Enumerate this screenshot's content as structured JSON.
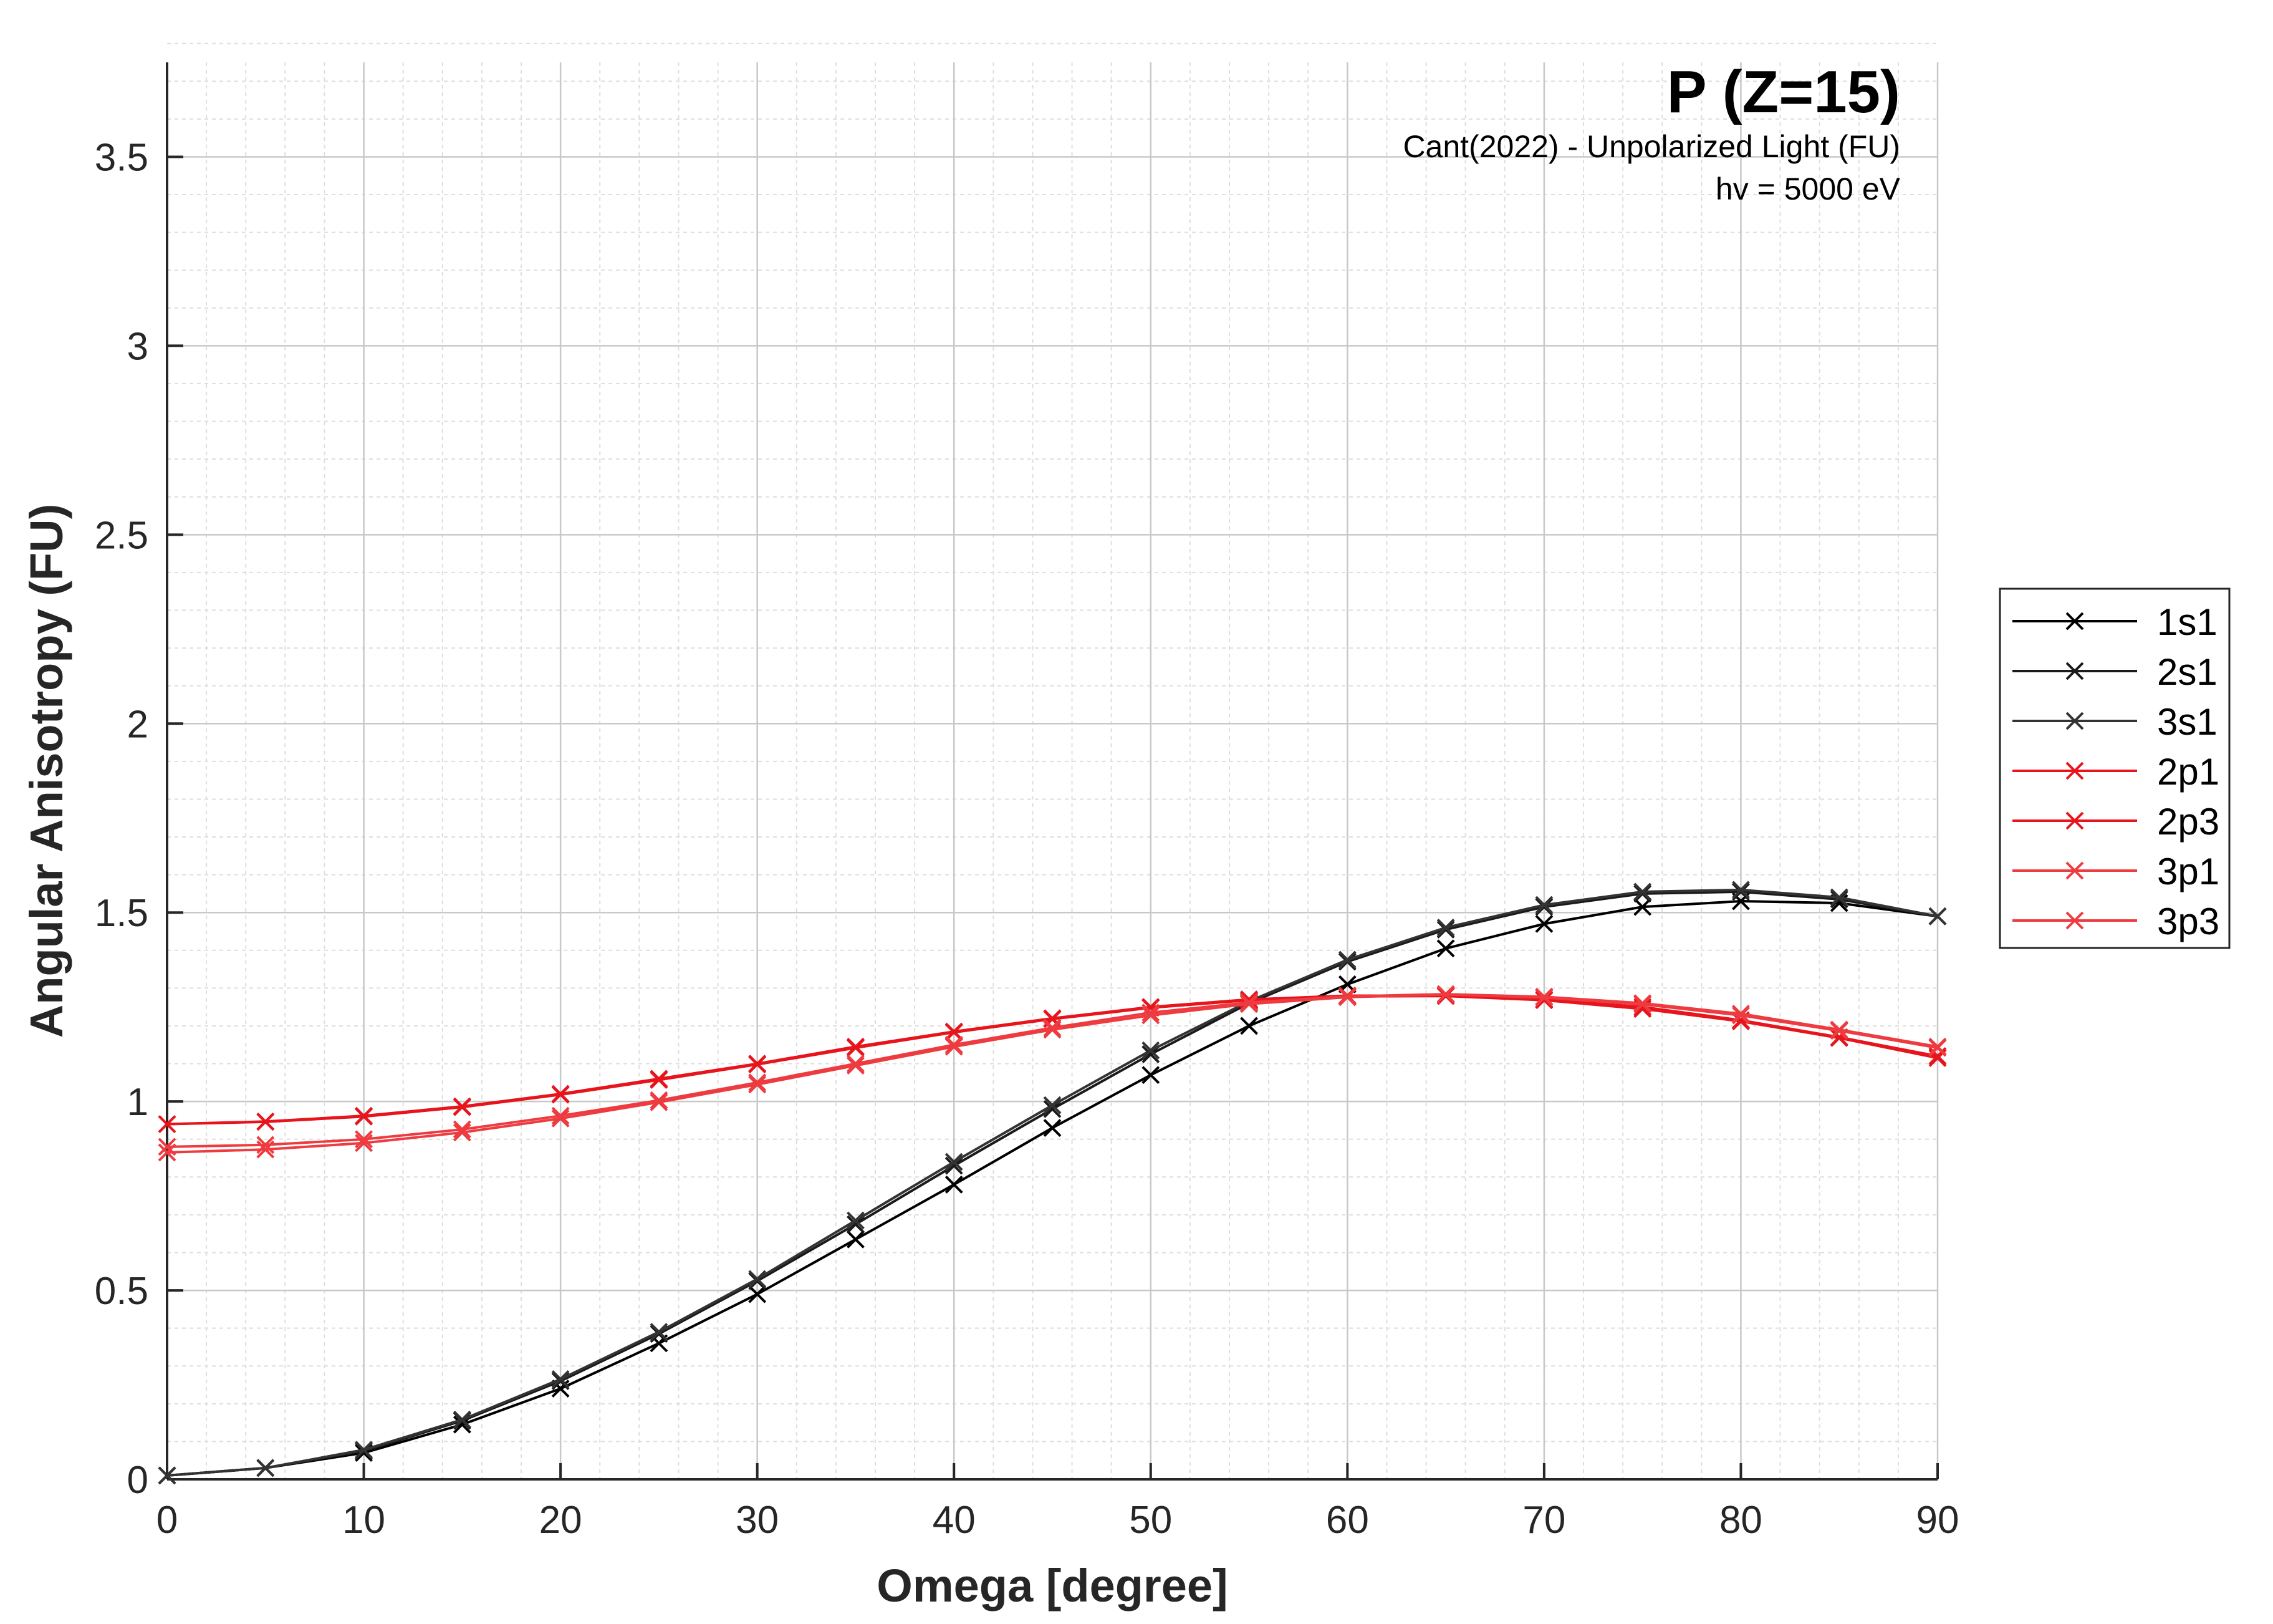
{
  "chart_data": {
    "type": "line",
    "title": "P (Z=15)",
    "subtitle_lines": [
      "Cant(2022) - Unpolarized Light (FU)",
      "hv = 5000 eV"
    ],
    "xlabel": "Omega [degree]",
    "ylabel": "Angular Anisotropy (FU)",
    "xlim": [
      0,
      90
    ],
    "ylim": [
      0,
      3.75
    ],
    "xticks": [
      0,
      10,
      20,
      30,
      40,
      50,
      60,
      70,
      80,
      90
    ],
    "xtick_labels": [
      "0",
      "10",
      "20",
      "30",
      "40",
      "50",
      "60",
      "70",
      "80",
      "90"
    ],
    "yticks": [
      0,
      0.5,
      1,
      1.5,
      2,
      2.5,
      3,
      3.5
    ],
    "ytick_labels": [
      "0",
      "0.5",
      "1",
      "1.5",
      "2",
      "2.5",
      "3",
      "3.5"
    ],
    "grid": true,
    "minor_grid": true,
    "legend_position": "outside-right",
    "x": [
      0,
      5,
      10,
      15,
      20,
      25,
      30,
      35,
      40,
      45,
      50,
      55,
      60,
      65,
      70,
      75,
      80,
      85,
      90
    ],
    "series": [
      {
        "name": "1s1",
        "color": "#000000",
        "values": [
          0.01,
          0.03,
          0.07,
          0.145,
          0.24,
          0.36,
          0.49,
          0.635,
          0.78,
          0.93,
          1.07,
          1.2,
          1.31,
          1.405,
          1.47,
          1.515,
          1.53,
          1.525,
          1.49
        ]
      },
      {
        "name": "2s1",
        "color": "#1a1a1a",
        "values": [
          0.01,
          0.03,
          0.075,
          0.155,
          0.26,
          0.385,
          0.525,
          0.675,
          0.83,
          0.98,
          1.125,
          1.26,
          1.37,
          1.455,
          1.515,
          1.55,
          1.555,
          1.535,
          1.49
        ]
      },
      {
        "name": "3s1",
        "color": "#333333",
        "values": [
          0.01,
          0.03,
          0.078,
          0.158,
          0.265,
          0.39,
          0.53,
          0.685,
          0.84,
          0.99,
          1.135,
          1.265,
          1.375,
          1.46,
          1.52,
          1.555,
          1.56,
          1.54,
          1.49
        ]
      },
      {
        "name": "2p1",
        "color": "#e8141c",
        "values": [
          0.94,
          0.947,
          0.962,
          0.987,
          1.02,
          1.06,
          1.1,
          1.145,
          1.185,
          1.22,
          1.25,
          1.27,
          1.28,
          1.28,
          1.27,
          1.25,
          1.215,
          1.17,
          1.12
        ]
      },
      {
        "name": "2p3",
        "color": "#e8141c",
        "values": [
          0.94,
          0.946,
          0.96,
          0.985,
          1.018,
          1.057,
          1.098,
          1.142,
          1.183,
          1.218,
          1.248,
          1.268,
          1.278,
          1.279,
          1.268,
          1.245,
          1.212,
          1.168,
          1.115
        ]
      },
      {
        "name": "3p1",
        "color": "#ee3b40",
        "values": [
          0.865,
          0.873,
          0.89,
          0.918,
          0.955,
          0.998,
          1.045,
          1.095,
          1.145,
          1.19,
          1.228,
          1.258,
          1.276,
          1.283,
          1.275,
          1.257,
          1.228,
          1.187,
          1.142
        ]
      },
      {
        "name": "3p3",
        "color": "#ee3b40",
        "values": [
          0.88,
          0.885,
          0.9,
          0.926,
          0.962,
          1.003,
          1.05,
          1.1,
          1.15,
          1.195,
          1.235,
          1.262,
          1.278,
          1.284,
          1.277,
          1.26,
          1.232,
          1.19,
          1.145
        ]
      }
    ]
  }
}
